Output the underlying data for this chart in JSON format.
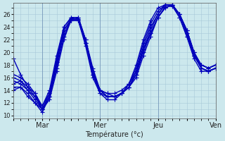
{
  "xlabel": "Température (°c)",
  "ylim": [
    9.5,
    27.8
  ],
  "ytick_min": 10,
  "ytick_max": 26,
  "ytick_step": 2,
  "background_color": "#cce8ed",
  "grid_color": "#a8c8d8",
  "line_color": "#0000bb",
  "marker": "+",
  "markersize": 4,
  "linewidth": 1.0,
  "xlim": [
    0,
    168
  ],
  "day_ticks": [
    0,
    24,
    48,
    72,
    96,
    120,
    144,
    168
  ],
  "day_labels": [
    "",
    "Mar",
    "",
    "Mer",
    "",
    "Jeu",
    "",
    "Ven"
  ],
  "series": [
    {
      "x": [
        0,
        6,
        12,
        18,
        24,
        30,
        36,
        42,
        48,
        54,
        60,
        66,
        72,
        78,
        84,
        90,
        96,
        102,
        108,
        114,
        120,
        126,
        132,
        138,
        144,
        150,
        156,
        162,
        168
      ],
      "y": [
        19.0,
        16.5,
        14.5,
        13.5,
        11.0,
        12.5,
        17.0,
        22.0,
        25.2,
        25.2,
        22.0,
        17.5,
        14.0,
        13.5,
        13.0,
        13.5,
        14.5,
        16.0,
        19.5,
        22.5,
        25.5,
        27.0,
        27.5,
        26.0,
        23.0,
        19.5,
        18.0,
        17.5,
        18.0
      ]
    },
    {
      "x": [
        0,
        6,
        12,
        18,
        24,
        30,
        36,
        42,
        48,
        54,
        60,
        66,
        72,
        78,
        84,
        90,
        96,
        102,
        108,
        114,
        120,
        126,
        132,
        138,
        144,
        150,
        156,
        162,
        168
      ],
      "y": [
        15.0,
        15.5,
        14.0,
        13.0,
        11.0,
        13.0,
        17.5,
        22.5,
        25.0,
        25.0,
        21.5,
        16.5,
        14.0,
        13.5,
        13.5,
        14.0,
        15.0,
        17.0,
        20.5,
        23.0,
        25.5,
        27.2,
        27.3,
        25.5,
        22.5,
        19.5,
        17.5,
        17.0,
        17.5
      ]
    },
    {
      "x": [
        0,
        6,
        12,
        18,
        24,
        30,
        36,
        42,
        48,
        54,
        60,
        66,
        72,
        78,
        84,
        90,
        96,
        102,
        108,
        114,
        120,
        126,
        132,
        138,
        144,
        150,
        156,
        162,
        168
      ],
      "y": [
        14.0,
        14.5,
        13.0,
        12.0,
        11.0,
        13.0,
        18.0,
        23.0,
        25.0,
        25.0,
        21.0,
        16.0,
        13.5,
        13.0,
        13.0,
        13.5,
        14.5,
        16.5,
        20.0,
        23.0,
        25.5,
        27.0,
        27.5,
        25.5,
        22.5,
        19.0,
        17.0,
        17.0,
        17.5
      ]
    },
    {
      "x": [
        0,
        6,
        12,
        18,
        24,
        30,
        36,
        42,
        48,
        54,
        60,
        66,
        72,
        78,
        84,
        90,
        96,
        102,
        108,
        114,
        120,
        126,
        132,
        138,
        144,
        150,
        156,
        162,
        168
      ],
      "y": [
        16.0,
        15.5,
        14.5,
        13.0,
        11.5,
        13.5,
        18.5,
        23.5,
        25.0,
        25.0,
        21.5,
        16.5,
        14.0,
        13.0,
        13.0,
        13.5,
        14.5,
        16.5,
        20.5,
        23.5,
        26.0,
        27.5,
        27.5,
        26.0,
        23.0,
        19.5,
        17.5,
        17.0,
        17.5
      ]
    },
    {
      "x": [
        0,
        6,
        12,
        18,
        24,
        30,
        36,
        42,
        48,
        54,
        60,
        66,
        72,
        78,
        84,
        90,
        96,
        102,
        108,
        114,
        120,
        126,
        132,
        138,
        144,
        150,
        156,
        162,
        168
      ],
      "y": [
        14.5,
        14.5,
        13.5,
        12.0,
        10.5,
        13.0,
        18.5,
        23.5,
        25.3,
        25.3,
        21.5,
        16.5,
        13.5,
        12.5,
        12.5,
        13.5,
        14.5,
        17.0,
        21.0,
        24.0,
        26.0,
        27.5,
        27.5,
        26.0,
        23.5,
        20.0,
        17.5,
        17.0,
        17.5
      ]
    },
    {
      "x": [
        0,
        6,
        12,
        18,
        24,
        30,
        36,
        42,
        48,
        54,
        60,
        66,
        72,
        78,
        84,
        90,
        96,
        102,
        108,
        114,
        120,
        126,
        132,
        138,
        144,
        150,
        156,
        162,
        168
      ],
      "y": [
        15.5,
        15.0,
        14.0,
        12.5,
        11.0,
        13.5,
        19.0,
        24.0,
        25.5,
        25.5,
        22.0,
        17.0,
        14.0,
        13.0,
        13.0,
        13.5,
        15.0,
        17.5,
        21.5,
        24.5,
        26.5,
        27.5,
        27.5,
        26.0,
        23.5,
        20.0,
        18.0,
        17.5,
        18.0
      ]
    },
    {
      "x": [
        0,
        6,
        12,
        18,
        24,
        30,
        36,
        42,
        48,
        54,
        60,
        66,
        72,
        78,
        84,
        90,
        96,
        102,
        108,
        114,
        120,
        126,
        132,
        138,
        144,
        150,
        156,
        162,
        168
      ],
      "y": [
        16.5,
        16.0,
        15.0,
        13.5,
        11.5,
        14.0,
        19.5,
        24.0,
        25.5,
        25.5,
        22.0,
        17.0,
        14.0,
        13.0,
        13.0,
        13.5,
        15.0,
        18.0,
        22.0,
        25.0,
        27.0,
        27.5,
        27.5,
        26.0,
        23.5,
        20.0,
        18.0,
        17.5,
        18.0
      ]
    }
  ]
}
